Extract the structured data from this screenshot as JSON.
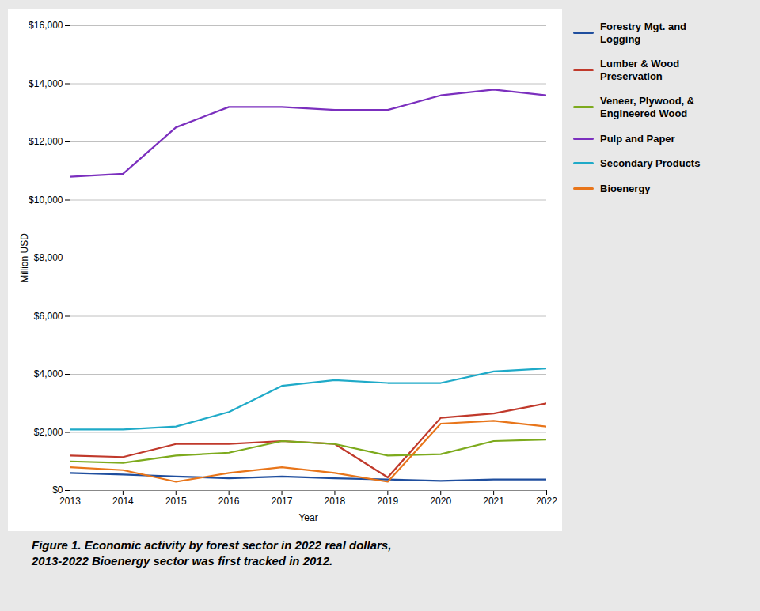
{
  "chart_data": {
    "type": "line",
    "xlabel": "Year",
    "ylabel": "Million USD",
    "caption": "Figure 1. Economic activity by forest sector in 2022 real dollars,\n2013-2022 Bioenergy sector was first tracked in 2012.",
    "x": [
      2013,
      2014,
      2015,
      2016,
      2017,
      2018,
      2019,
      2020,
      2021,
      2022
    ],
    "xlim": [
      2013,
      2022
    ],
    "xticks": [
      2013,
      2014,
      2015,
      2016,
      2017,
      2018,
      2019,
      2020,
      2021,
      2022
    ],
    "ylim": [
      0,
      16000
    ],
    "yticks": [
      {
        "value": 0,
        "label": "$0"
      },
      {
        "value": 2000,
        "label": "$2,000"
      },
      {
        "value": 4000,
        "label": "$4,000"
      },
      {
        "value": 6000,
        "label": "$6,000"
      },
      {
        "value": 8000,
        "label": "$8,000"
      },
      {
        "value": 10000,
        "label": "$10,000"
      },
      {
        "value": 12000,
        "label": "$12,000"
      },
      {
        "value": 14000,
        "label": "$14,000"
      },
      {
        "value": 16000,
        "label": "$16,000"
      }
    ],
    "grid": true,
    "legend": "right",
    "series": [
      {
        "name": "Forestry Mgt. and\nLogging",
        "color": "#1f4e9e",
        "values": [
          600,
          550,
          480,
          420,
          480,
          420,
          380,
          330,
          380,
          380
        ]
      },
      {
        "name": "Lumber & Wood\nPreservation",
        "color": "#c0392b",
        "values": [
          1200,
          1150,
          1600,
          1600,
          1700,
          1600,
          450,
          2500,
          2650,
          3000
        ]
      },
      {
        "name": "Veneer, Plywood, &\nEngineered Wood",
        "color": "#7daa1d",
        "values": [
          1000,
          950,
          1200,
          1300,
          1700,
          1600,
          1200,
          1250,
          1700,
          1750
        ]
      },
      {
        "name": "Pulp and Paper",
        "color": "#7b2fbe",
        "values": [
          10800,
          10900,
          12500,
          13200,
          13200,
          13100,
          13100,
          13600,
          13800,
          13600
        ]
      },
      {
        "name": "Secondary Products",
        "color": "#1faac8",
        "values": [
          2100,
          2100,
          2200,
          2700,
          3600,
          3800,
          3700,
          3700,
          4100,
          4200
        ]
      },
      {
        "name": "Bioenergy",
        "color": "#e8751a",
        "values": [
          800,
          700,
          300,
          600,
          800,
          600,
          300,
          2300,
          2400,
          2200
        ]
      }
    ]
  }
}
